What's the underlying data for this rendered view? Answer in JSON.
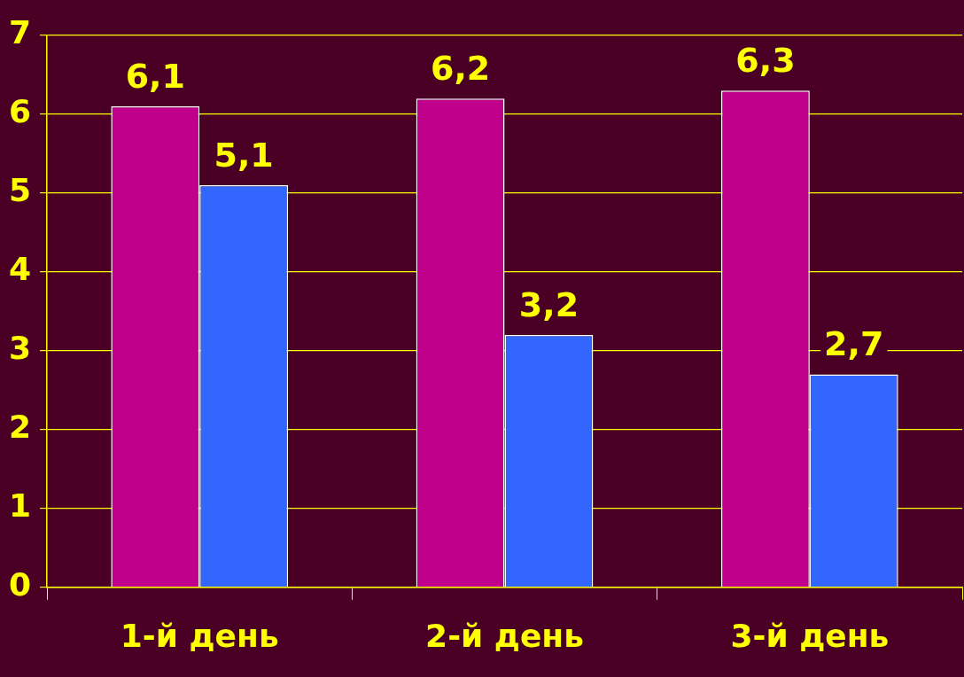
{
  "chart_data": {
    "type": "bar",
    "categories": [
      "1-й день",
      "2-й день",
      "3-й день"
    ],
    "series": [
      {
        "color": "#c0008c",
        "values": [
          6.1,
          6.2,
          6.3
        ],
        "value_labels": [
          "6,1",
          "6,2",
          "6,3"
        ]
      },
      {
        "color": "#3366ff",
        "values": [
          5.1,
          3.2,
          2.7
        ],
        "value_labels": [
          "5,1",
          "3,2",
          "2,7"
        ]
      }
    ],
    "ylim": [
      0,
      7
    ],
    "yticks": [
      0,
      1,
      2,
      3,
      4,
      5,
      6,
      7
    ],
    "grid": "y",
    "legend": false
  }
}
